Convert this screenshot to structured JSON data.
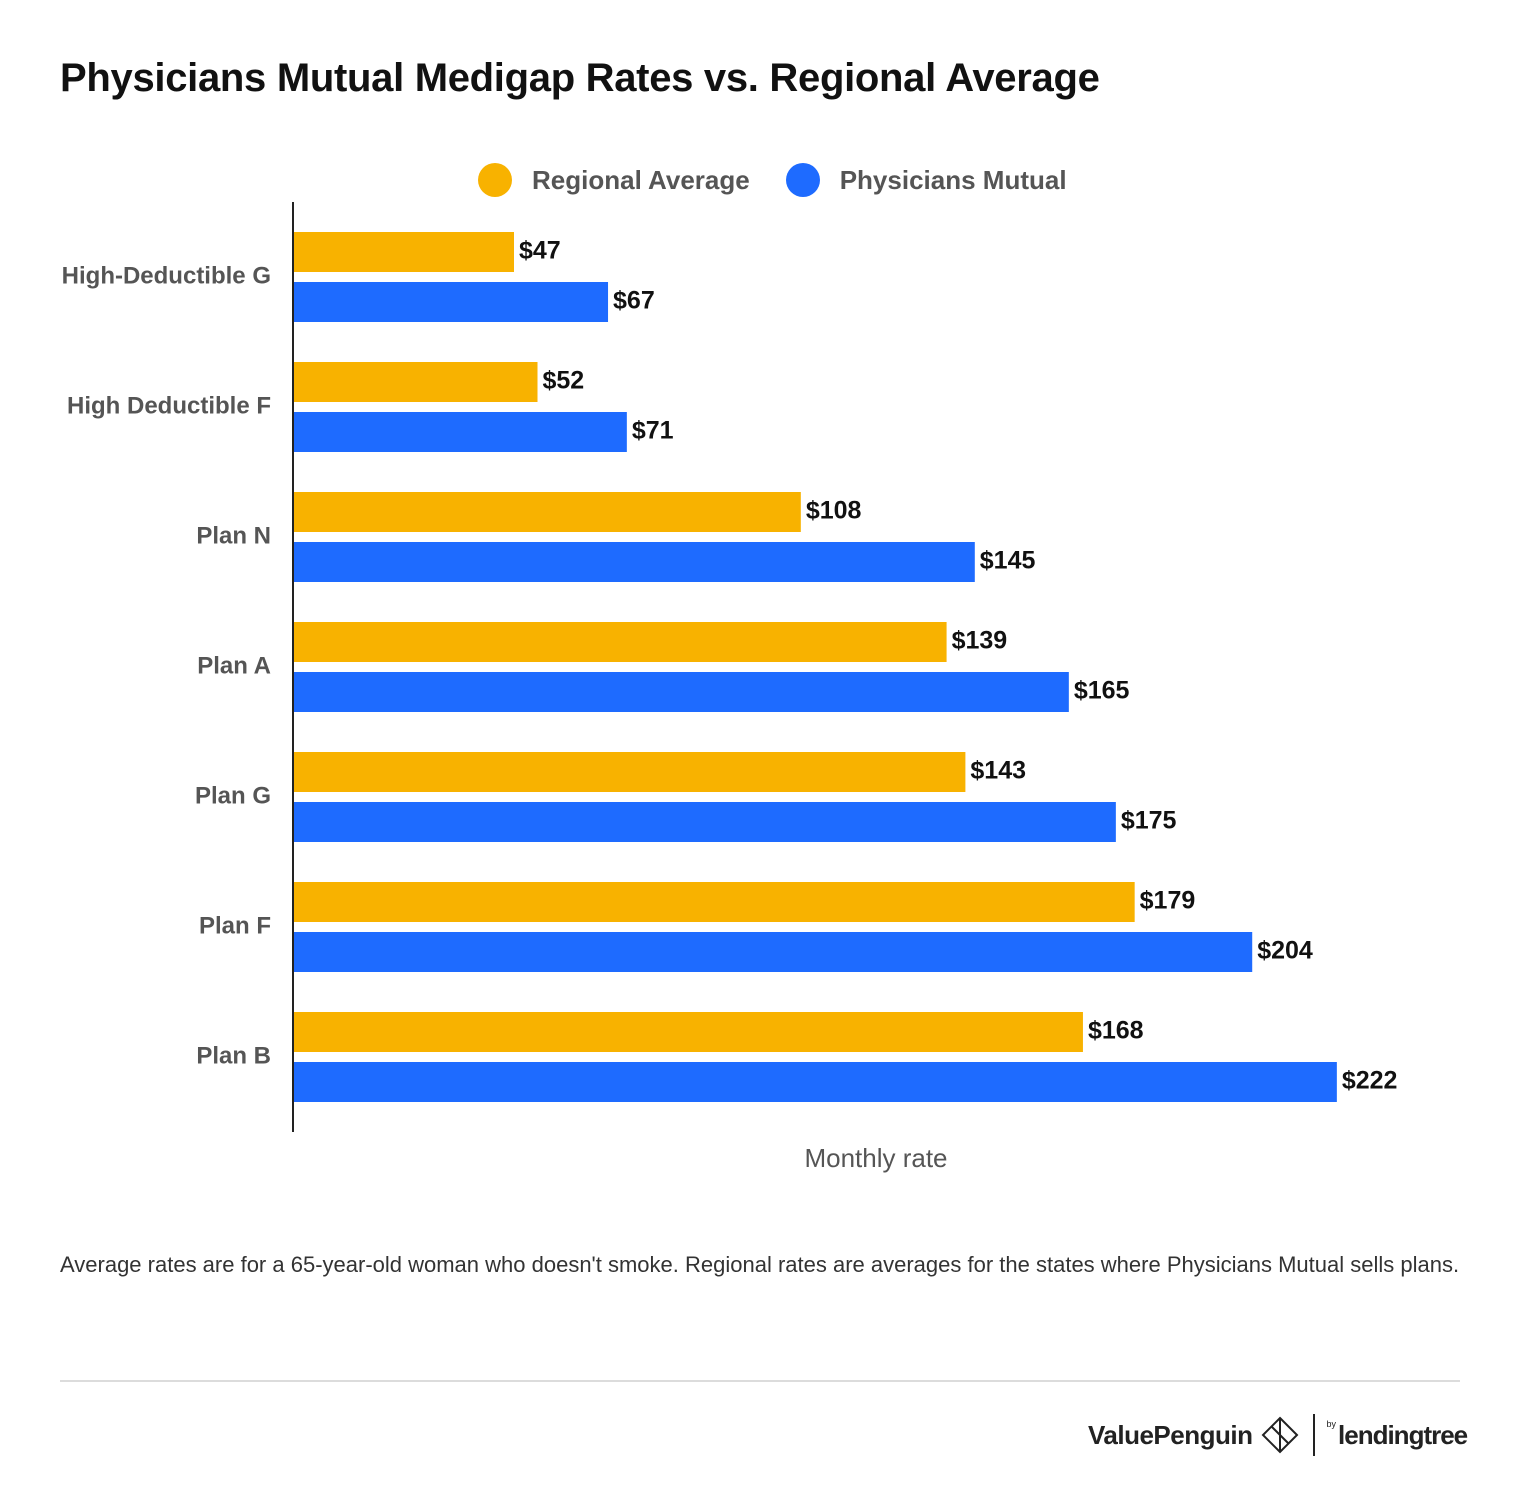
{
  "title": "Physicians Mutual Medigap Rates vs. Regional Average",
  "legend": [
    {
      "label": "Regional Average",
      "color": "#F8B200"
    },
    {
      "label": "Physicians Mutual",
      "color": "#1E6BFF"
    }
  ],
  "chart_data": {
    "type": "bar",
    "orientation": "horizontal",
    "categories": [
      "High-Deductible G",
      "High Deductible F",
      "Plan N",
      "Plan A",
      "Plan G",
      "Plan F",
      "Plan B"
    ],
    "series": [
      {
        "name": "Regional Average",
        "color": "#F8B200",
        "values": [
          47,
          52,
          108,
          139,
          143,
          179,
          168
        ]
      },
      {
        "name": "Physicians Mutual",
        "color": "#1E6BFF",
        "values": [
          67,
          71,
          145,
          165,
          175,
          204,
          222
        ]
      }
    ],
    "value_prefix": "$",
    "xlabel": "Monthly rate",
    "ylabel": "",
    "xlim": [
      0,
      245
    ],
    "grid": false,
    "legend_position": "top-center"
  },
  "footnote": "Average rates are for a 65-year-old woman who doesn't smoke. Regional rates are averages for the states where Physicians Mutual sells plans.",
  "brand": {
    "name": "ValuePenguin",
    "by": "by",
    "partner": "lendingtree",
    "logo_icon": "penguin-diamond-icon"
  }
}
